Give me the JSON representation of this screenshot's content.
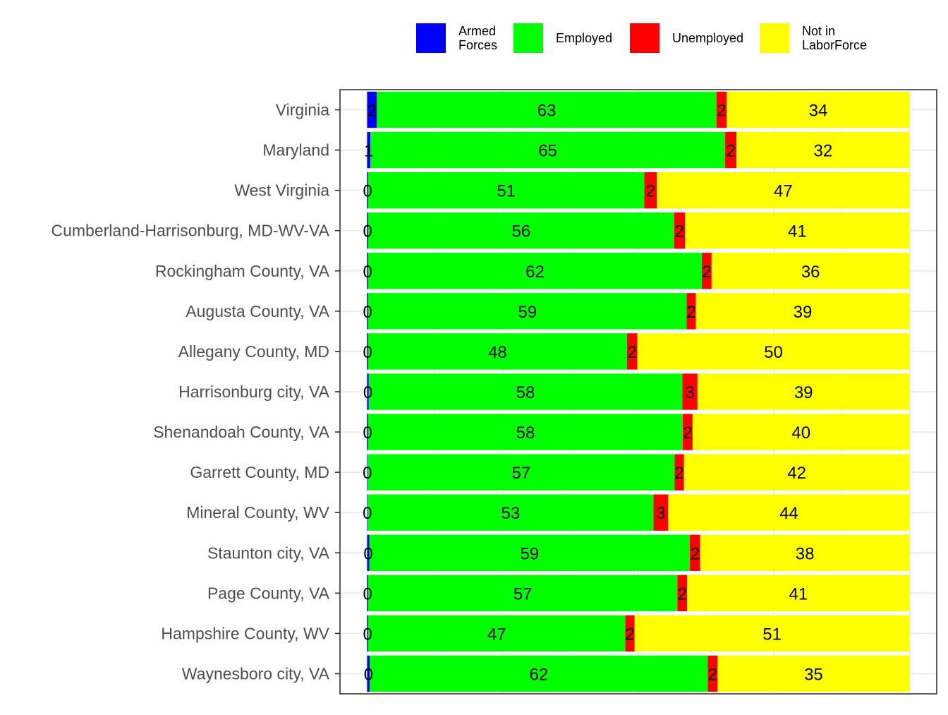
{
  "chart_data": {
    "type": "bar",
    "orientation": "horizontal",
    "stacked": true,
    "stack_mode": "percent",
    "categories": [
      "Virginia",
      "Maryland",
      "West Virginia",
      "Cumberland-Harrisonburg, MD-WV-VA",
      "Rockingham County, VA",
      "Augusta County, VA",
      "Allegany County, MD",
      "Harrisonburg city, VA",
      "Shenandoah County, VA",
      "Garrett County, MD",
      "Mineral County, WV",
      "Staunton city, VA",
      "Page County, VA",
      "Hampshire County, WV",
      "Waynesboro city, VA"
    ],
    "series": [
      {
        "name_lines": [
          "Armed",
          "Forces"
        ],
        "color": "#0000FF",
        "values": [
          2,
          1,
          0,
          0,
          0,
          0,
          0,
          0,
          0,
          0,
          0,
          0,
          0,
          0,
          0
        ],
        "fractions": [
          0.018,
          0.006,
          0.002,
          0.002,
          0.002,
          0.002,
          0.002,
          0.003,
          0.002,
          0.001,
          0.001,
          0.004,
          0.002,
          0.002,
          0.005
        ]
      },
      {
        "name_lines": [
          "Employed"
        ],
        "color": "#00FF00",
        "values": [
          63,
          65,
          51,
          56,
          62,
          59,
          48,
          58,
          58,
          57,
          53,
          59,
          57,
          47,
          62
        ],
        "fractions": [
          0.626,
          0.654,
          0.509,
          0.564,
          0.615,
          0.587,
          0.477,
          0.578,
          0.58,
          0.566,
          0.527,
          0.591,
          0.57,
          0.474,
          0.623
        ]
      },
      {
        "name_lines": [
          "Unemployed"
        ],
        "color": "#FF0000",
        "values": [
          2,
          2,
          2,
          2,
          2,
          2,
          2,
          3,
          2,
          2,
          3,
          2,
          2,
          2,
          2
        ],
        "fractions": [
          0.019,
          0.021,
          0.023,
          0.02,
          0.018,
          0.017,
          0.019,
          0.028,
          0.018,
          0.017,
          0.027,
          0.019,
          0.018,
          0.017,
          0.018
        ]
      },
      {
        "name_lines": [
          "Not in",
          "LaborForce"
        ],
        "color": "#FFFF00",
        "values": [
          34,
          32,
          47,
          41,
          36,
          39,
          50,
          39,
          40,
          42,
          44,
          38,
          41,
          51,
          35
        ],
        "fractions": [
          0.337,
          0.319,
          0.466,
          0.414,
          0.365,
          0.394,
          0.502,
          0.391,
          0.4,
          0.416,
          0.445,
          0.386,
          0.41,
          0.507,
          0.354
        ]
      }
    ],
    "xlim": [
      -0.05,
      1.05
    ],
    "legend_position": "top",
    "grid": true,
    "title": "",
    "xlabel": "",
    "ylabel": ""
  }
}
